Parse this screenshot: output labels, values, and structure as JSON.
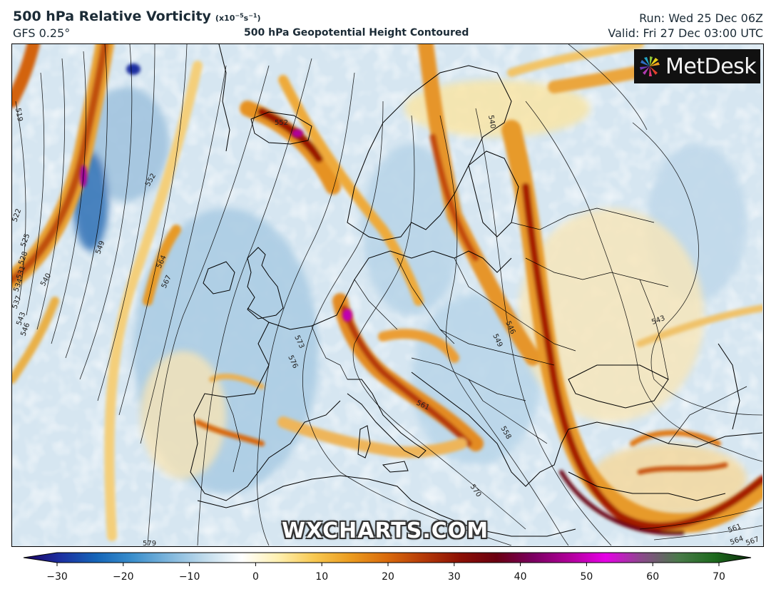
{
  "header": {
    "title": "500 hPa Relative Vorticity",
    "units_prefix": "(x10",
    "units_exp": "−5",
    "units_mid": "s",
    "units_exp2": "−1",
    "units_suffix": ")",
    "model": "GFS 0.25°",
    "subtitle": "500 hPa Geopotential Height Contoured",
    "run": "Run: Wed 25 Dec 06Z",
    "valid": "Valid: Fri 27 Dec 03:00 UTC"
  },
  "logo": {
    "text": "MetDesk",
    "icon": "metdesk-pinwheel-icon"
  },
  "watermark": "WXCHARTS.COM",
  "colorbar": {
    "min": -30,
    "max": 70,
    "ticks": [
      "−30",
      "−20",
      "−10",
      "0",
      "10",
      "20",
      "30",
      "40",
      "50",
      "60",
      "70"
    ],
    "stops": [
      {
        "v": -30,
        "c": "#1a0060"
      },
      {
        "v": -25,
        "c": "#1c2fa0"
      },
      {
        "v": -20,
        "c": "#1565b8"
      },
      {
        "v": -15,
        "c": "#3b8fcc"
      },
      {
        "v": -10,
        "c": "#7fb6dc"
      },
      {
        "v": -5,
        "c": "#c2dcec"
      },
      {
        "v": 0,
        "c": "#ffffff"
      },
      {
        "v": 5,
        "c": "#fff0b0"
      },
      {
        "v": 10,
        "c": "#f8c850"
      },
      {
        "v": 15,
        "c": "#eb9b1f"
      },
      {
        "v": 20,
        "c": "#d96a0c"
      },
      {
        "v": 25,
        "c": "#b53a08"
      },
      {
        "v": 30,
        "c": "#8c1004"
      },
      {
        "v": 35,
        "c": "#6a0010"
      },
      {
        "v": 40,
        "c": "#7a0060"
      },
      {
        "v": 45,
        "c": "#b0009a"
      },
      {
        "v": 50,
        "c": "#e600e6"
      },
      {
        "v": 55,
        "c": "#8a4a8a"
      },
      {
        "v": 60,
        "c": "#4a7a4a"
      },
      {
        "v": 65,
        "c": "#1d6a1d"
      },
      {
        "v": 70,
        "c": "#0a2a0a"
      }
    ]
  },
  "contour_labels": [
    "519",
    "522",
    "525",
    "528",
    "531",
    "534",
    "537",
    "540",
    "543",
    "546",
    "549",
    "552",
    "564",
    "567",
    "573",
    "576",
    "540",
    "552",
    "546",
    "549",
    "543",
    "561",
    "558",
    "570",
    "579",
    "561",
    "564",
    "567"
  ]
}
